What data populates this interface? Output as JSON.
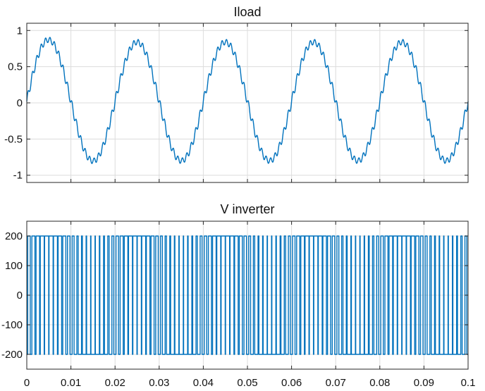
{
  "chart_data": [
    {
      "type": "line",
      "title": "Iload",
      "xlabel": "",
      "ylabel": "",
      "xlim": [
        0,
        0.1
      ],
      "ylim": [
        -1.1,
        1.1
      ],
      "grid": true,
      "x_ticks": [
        "",
        "",
        "",
        "",
        "",
        "",
        "",
        "",
        "",
        "",
        ""
      ],
      "y_ticks": [
        {
          "value": 1,
          "label": "1"
        },
        {
          "value": 0.5,
          "label": "0.5"
        },
        {
          "value": 0,
          "label": "0"
        },
        {
          "value": -0.5,
          "label": "-0.5"
        },
        {
          "value": -1,
          "label": "-1"
        }
      ],
      "series": [
        {
          "color": "#0072BD",
          "waveform": "sine_with_switching_ripple",
          "frequency_hz": 50,
          "amplitude": 0.82,
          "offset": 0.02,
          "ripple_amplitude": 0.06,
          "initial_peak": 0.93,
          "x_start": 0,
          "x_end": 0.1
        }
      ]
    },
    {
      "type": "line",
      "title": "V inverter",
      "xlabel": "",
      "ylabel": "",
      "xlim": [
        0,
        0.1
      ],
      "ylim": [
        -250,
        250
      ],
      "grid": true,
      "x_ticks": [
        "0",
        "0.01",
        "0.02",
        "0.03",
        "0.04",
        "0.05",
        "0.06",
        "0.07",
        "0.08",
        "0.09",
        "0.1"
      ],
      "y_ticks": [
        {
          "value": 200,
          "label": "200"
        },
        {
          "value": 100,
          "label": "100"
        },
        {
          "value": 0,
          "label": "0"
        },
        {
          "value": -100,
          "label": "-100"
        },
        {
          "value": -200,
          "label": "-200"
        }
      ],
      "series": [
        {
          "color": "#0072BD",
          "waveform": "pwm_square",
          "levels": [
            -200,
            200
          ],
          "switching_frequency_hz": 1000,
          "modulation_frequency_hz": 50,
          "modulation_index": 0.85,
          "x_start": 0,
          "x_end": 0.1
        }
      ]
    }
  ]
}
